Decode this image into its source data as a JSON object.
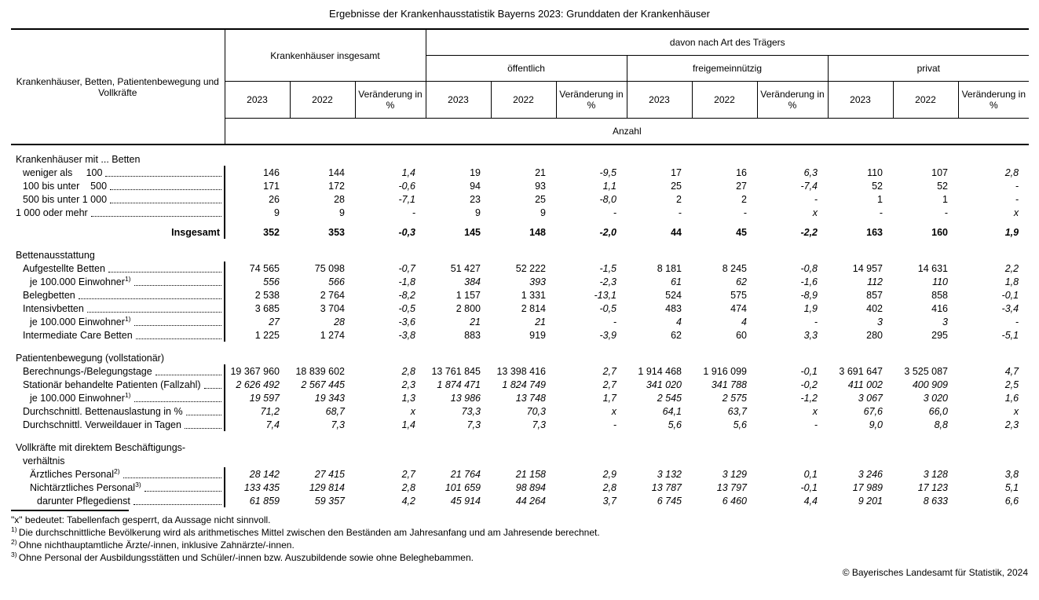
{
  "title": "Ergebnisse der Krankenhausstatistik Bayerns 2023: Grunddaten der Krankenhäuser",
  "header": {
    "stub_label": "Krankenhäuser, Betten, Patientenbewegung und Vollkräfte",
    "group_total": "Krankenhäuser insgesamt",
    "group_traeger": "davon nach Art des Trägers",
    "subgroups": [
      "öffentlich",
      "freigemeinnützig",
      "privat"
    ],
    "year_a": "2023",
    "year_b": "2022",
    "change": "Veränderung in %",
    "unit": "Anzahl"
  },
  "table": {
    "sections": [
      {
        "title_lines": [
          {
            "text": "Krankenhäuser mit ... Betten",
            "indent": 0
          }
        ],
        "rows": [
          {
            "label": "weniger als     100",
            "indent": 1,
            "values": [
              "146",
              "144",
              "1,4",
              "19",
              "21",
              "-9,5",
              "17",
              "16",
              "6,3",
              "110",
              "107",
              "2,8"
            ]
          },
          {
            "label": "100 bis unter    500",
            "indent": 1,
            "values": [
              "171",
              "172",
              "-0,6",
              "94",
              "93",
              "1,1",
              "25",
              "27",
              "-7,4",
              "52",
              "52",
              "-"
            ]
          },
          {
            "label": "500 bis unter 1 000",
            "indent": 1,
            "values": [
              "26",
              "28",
              "-7,1",
              "23",
              "25",
              "-8,0",
              "2",
              "2",
              "-",
              "1",
              "1",
              "-"
            ]
          },
          {
            "label": "1 000 oder mehr",
            "indent": 0,
            "values": [
              "9",
              "9",
              "-",
              "9",
              "9",
              "-",
              "-",
              "-",
              "x",
              "-",
              "-",
              "x"
            ]
          },
          {
            "label": "Insgesamt",
            "align": "right",
            "bold": true,
            "pad_top": true,
            "leader": false,
            "values": [
              "352",
              "353",
              "-0,3",
              "145",
              "148",
              "-2,0",
              "44",
              "45",
              "-2,2",
              "163",
              "160",
              "1,9"
            ]
          }
        ]
      },
      {
        "title_lines": [
          {
            "text": "Bettenausstattung",
            "indent": 0
          }
        ],
        "rows": [
          {
            "label": "Aufgestellte Betten",
            "indent": 1,
            "values": [
              "74 565",
              "75 098",
              "-0,7",
              "51 427",
              "52 222",
              "-1,5",
              "8 181",
              "8 245",
              "-0,8",
              "14 957",
              "14 631",
              "2,2"
            ]
          },
          {
            "label": "je 100.000 Einwohner",
            "sup": "1)",
            "indent": 2,
            "italic": true,
            "values": [
              "556",
              "566",
              "-1,8",
              "384",
              "393",
              "-2,3",
              "61",
              "62",
              "-1,6",
              "112",
              "110",
              "1,8"
            ]
          },
          {
            "label": "Belegbetten",
            "indent": 1,
            "values": [
              "2 538",
              "2 764",
              "-8,2",
              "1 157",
              "1 331",
              "-13,1",
              "524",
              "575",
              "-8,9",
              "857",
              "858",
              "-0,1"
            ]
          },
          {
            "label": "Intensivbetten",
            "indent": 1,
            "values": [
              "3 685",
              "3 704",
              "-0,5",
              "2 800",
              "2 814",
              "-0,5",
              "483",
              "474",
              "1,9",
              "402",
              "416",
              "-3,4"
            ]
          },
          {
            "label": "je 100.000 Einwohner",
            "sup": "1)",
            "indent": 2,
            "italic": true,
            "values": [
              "27",
              "28",
              "-3,6",
              "21",
              "21",
              "-",
              "4",
              "4",
              "-",
              "3",
              "3",
              "-"
            ]
          },
          {
            "label": "Intermediate Care Betten",
            "indent": 1,
            "values": [
              "1 225",
              "1 274",
              "-3,8",
              "883",
              "919",
              "-3,9",
              "62",
              "60",
              "3,3",
              "280",
              "295",
              "-5,1"
            ]
          }
        ]
      },
      {
        "title_lines": [
          {
            "text": "Patientenbewegung (vollstationär)",
            "indent": 0
          }
        ],
        "rows": [
          {
            "label": "Berechnungs-/Belegungstage",
            "indent": 1,
            "values": [
              "19 367 960",
              "18 839 602",
              "2,8",
              "13 761 845",
              "13 398 416",
              "2,7",
              "1 914 468",
              "1 916 099",
              "-0,1",
              "3 691 647",
              "3 525 087",
              "4,7"
            ]
          },
          {
            "label": "Stationär behandelte Patienten (Fallzahl)",
            "indent": 1,
            "italic": true,
            "values": [
              "2 626 492",
              "2 567 445",
              "2,3",
              "1 874 471",
              "1 824 749",
              "2,7",
              "341 020",
              "341 788",
              "-0,2",
              "411 002",
              "400 909",
              "2,5"
            ]
          },
          {
            "label": "je 100.000 Einwohner",
            "sup": "1)",
            "indent": 2,
            "italic": true,
            "values": [
              "19 597",
              "19 343",
              "1,3",
              "13 986",
              "13 748",
              "1,7",
              "2 545",
              "2 575",
              "-1,2",
              "3 067",
              "3 020",
              "1,6"
            ]
          },
          {
            "label": "Durchschnittl. Bettenauslastung in %",
            "indent": 1,
            "italic": true,
            "values": [
              "71,2",
              "68,7",
              "x",
              "73,3",
              "70,3",
              "x",
              "64,1",
              "63,7",
              "x",
              "67,6",
              "66,0",
              "x"
            ]
          },
          {
            "label": "Durchschnittl. Verweildauer in Tagen",
            "indent": 1,
            "italic": true,
            "values": [
              "7,4",
              "7,3",
              "1,4",
              "7,3",
              "7,3",
              "-",
              "5,6",
              "5,6",
              "-",
              "9,0",
              "8,8",
              "2,3"
            ]
          }
        ]
      },
      {
        "title_lines": [
          {
            "text": "Vollkräfte mit direktem Beschäftigungs-",
            "indent": 0
          },
          {
            "text": "verhältnis",
            "indent": 1
          }
        ],
        "rows": [
          {
            "label": "Ärztliches Personal",
            "sup": "2)",
            "indent": 2,
            "italic": true,
            "values": [
              "28 142",
              "27 415",
              "2,7",
              "21 764",
              "21 158",
              "2,9",
              "3 132",
              "3 129",
              "0,1",
              "3 246",
              "3 128",
              "3,8"
            ]
          },
          {
            "label": "Nichtärztliches Personal",
            "sup": "3)",
            "indent": 2,
            "italic": true,
            "values": [
              "133 435",
              "129 814",
              "2,8",
              "101 659",
              "98 894",
              "2,8",
              "13 787",
              "13 797",
              "-0,1",
              "17 989",
              "17 123",
              "5,1"
            ]
          },
          {
            "label": "darunter Pflegedienst",
            "indent": 3,
            "italic": true,
            "values": [
              "61 859",
              "59 357",
              "4,2",
              "45 914",
              "44 264",
              "3,7",
              "6 745",
              "6 460",
              "4,4",
              "9 201",
              "8 633",
              "6,6"
            ]
          }
        ]
      }
    ]
  },
  "footnotes": [
    {
      "sup": "",
      "text": "\"x\" bedeutet: Tabellenfach gesperrt, da Aussage nicht sinnvoll."
    },
    {
      "sup": "1)",
      "text": "Die durchschnittliche Bevölkerung wird als arithmetisches Mittel zwischen den Beständen am Jahresanfang und am Jahresende berechnet."
    },
    {
      "sup": "2)",
      "text": "Ohne nichthauptamtliche Ärzte/-innen, inklusive Zahnärzte/-innen."
    },
    {
      "sup": "3)",
      "text": "Ohne Personal der Ausbildungsstätten und Schüler/-innen bzw. Auszubildende sowie ohne Beleghebammen."
    }
  ],
  "copyright": "© Bayerisches Landesamt für Statistik, 2024"
}
